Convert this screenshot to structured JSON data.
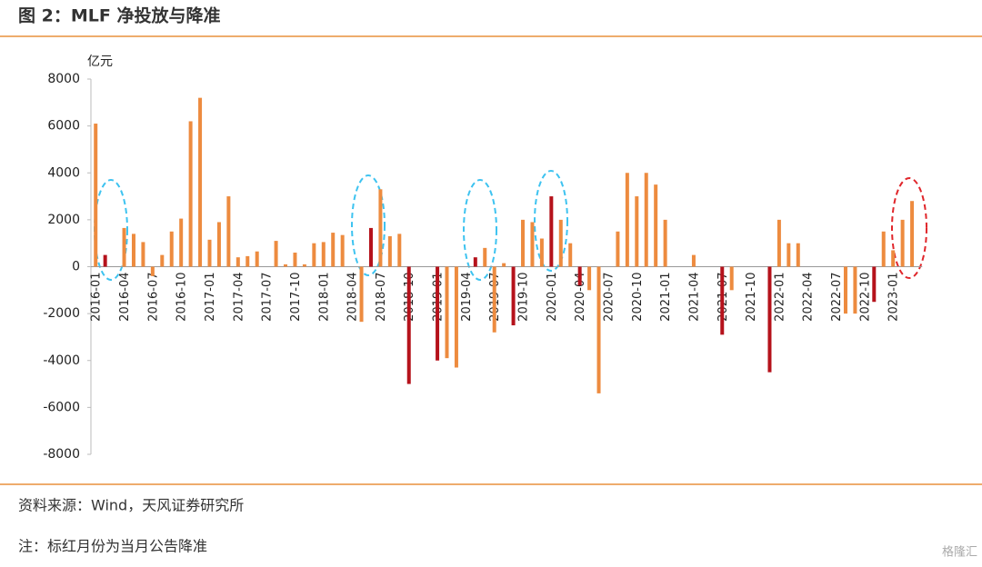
{
  "chart_data": {
    "type": "bar",
    "title": "图 2：MLF 净投放与降准",
    "y_axis_label": "亿元",
    "source": "资料来源：Wind，天风证券研究所",
    "note": "注：标红月份为当月公告降准",
    "watermark": "格隆汇",
    "categories": [
      "2016-01",
      null,
      null,
      "2016-04",
      null,
      null,
      "2016-07",
      null,
      null,
      "2016-10",
      null,
      null,
      "2017-01",
      null,
      null,
      "2017-04",
      null,
      null,
      "2017-07",
      null,
      null,
      "2017-10",
      null,
      null,
      "2018-01",
      null,
      null,
      "2018-04",
      null,
      null,
      "2018-07",
      null,
      null,
      "2018-10",
      null,
      null,
      "2019-01",
      null,
      null,
      "2019-04",
      null,
      null,
      "2019-07",
      null,
      null,
      "2019-10",
      null,
      null,
      "2020-01",
      null,
      null,
      "2020-04",
      null,
      null,
      "2020-07",
      null,
      null,
      "2020-10",
      null,
      null,
      "2021-01",
      null,
      null,
      "2021-04",
      null,
      null,
      "2021-07",
      null,
      null,
      "2021-10",
      null,
      null,
      "2022-01",
      null,
      null,
      "2022-04",
      null,
      null,
      "2022-07",
      null,
      null,
      "2022-10",
      null,
      null,
      "2023-01",
      null,
      null
    ],
    "values": [
      6100,
      500,
      0,
      1650,
      1400,
      1050,
      -400,
      500,
      1500,
      2050,
      6200,
      7200,
      1150,
      1900,
      3000,
      400,
      450,
      650,
      0,
      1100,
      100,
      600,
      100,
      1000,
      1050,
      1450,
      1350,
      0,
      -2350,
      1650,
      3300,
      1300,
      1400,
      -5000,
      0,
      0,
      -4000,
      -3900,
      -4300,
      0,
      400,
      800,
      -2800,
      150,
      -2500,
      2000,
      1900,
      1200,
      3000,
      2000,
      1000,
      -800,
      -1000,
      -5400,
      0,
      1500,
      4000,
      3000,
      4000,
      3500,
      2000,
      0,
      0,
      500,
      0,
      0,
      -2900,
      -1000,
      0,
      0,
      0,
      -4500,
      2000,
      1000,
      1000,
      0,
      0,
      0,
      0,
      -2000,
      -2000,
      0,
      -1500,
      1500,
      700,
      2000,
      2800
    ],
    "color": "#ed8b3f",
    "highlight_color": "#b5121b",
    "highlight": [
      1,
      29,
      33,
      36,
      40,
      44,
      48,
      51,
      66,
      71,
      82
    ],
    "ylim": [
      -8000,
      8000
    ],
    "yticks": [
      -8000,
      -6000,
      -4000,
      -2000,
      0,
      2000,
      4000,
      6000,
      8000
    ],
    "grid": false
  }
}
